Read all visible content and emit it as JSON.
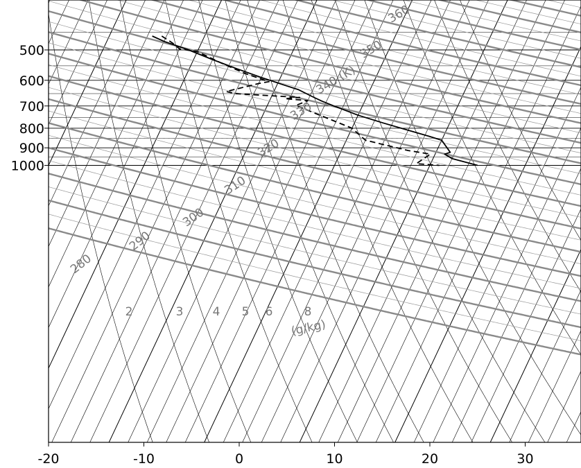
{
  "chart_data": {
    "type": "skew-t",
    "title": "",
    "xlabel": "",
    "ylabel": "",
    "x_ticks": [
      -20,
      -10,
      0,
      10,
      20,
      30
    ],
    "y_ticks": [
      500,
      600,
      700,
      800,
      900,
      1000
    ],
    "xlim": [
      -20,
      35
    ],
    "ylim": [
      1010,
      460
    ],
    "y_scale": "log",
    "grid": true,
    "reference_line_hPa": 850,
    "temperature": {
      "points": [
        [
          -15.5,
          460
        ],
        [
          -14,
          475
        ],
        [
          -11,
          500
        ],
        [
          -8,
          530
        ],
        [
          -5,
          560
        ],
        [
          -2,
          590
        ],
        [
          0.5,
          615
        ],
        [
          2.5,
          635
        ],
        [
          3.5,
          650
        ],
        [
          4.5,
          665
        ],
        [
          5.5,
          680
        ],
        [
          7,
          700
        ],
        [
          10,
          740
        ],
        [
          13,
          775
        ],
        [
          16,
          810
        ],
        [
          18.5,
          840
        ],
        [
          20,
          860
        ],
        [
          21.5,
          925
        ],
        [
          21,
          935
        ],
        [
          22,
          960
        ],
        [
          25,
          1000
        ]
      ]
    },
    "dewpoint": {
      "points": [
        [
          -14.5,
          460
        ],
        [
          -13,
          480
        ],
        [
          -12,
          497
        ],
        [
          -10,
          505
        ],
        [
          -7,
          540
        ],
        [
          -4,
          575
        ],
        [
          -1,
          605
        ],
        [
          -2,
          612
        ],
        [
          -5,
          642
        ],
        [
          -4,
          650
        ],
        [
          3,
          665
        ],
        [
          1.5,
          670
        ],
        [
          4,
          678
        ],
        [
          3,
          698
        ],
        [
          6,
          740
        ],
        [
          10,
          800
        ],
        [
          12,
          860
        ],
        [
          17,
          915
        ],
        [
          19.5,
          935
        ],
        [
          18.5,
          990
        ],
        [
          21,
          1000
        ]
      ]
    },
    "dry_adiabats": {
      "unit": "K",
      "theta": [
        280,
        290,
        300,
        310,
        320,
        330,
        340,
        350,
        360
      ],
      "labels": [
        "280",
        "290",
        "300",
        "310",
        "320",
        "330",
        "340 (K)",
        "350",
        "360"
      ]
    },
    "mixing_ratio": {
      "unit": "g/kg",
      "values": [
        2,
        3,
        4,
        5,
        6,
        8
      ],
      "labels": [
        "2",
        "3",
        "4",
        "5",
        "6",
        "8"
      ],
      "unit_label": "(g/kg)"
    }
  }
}
